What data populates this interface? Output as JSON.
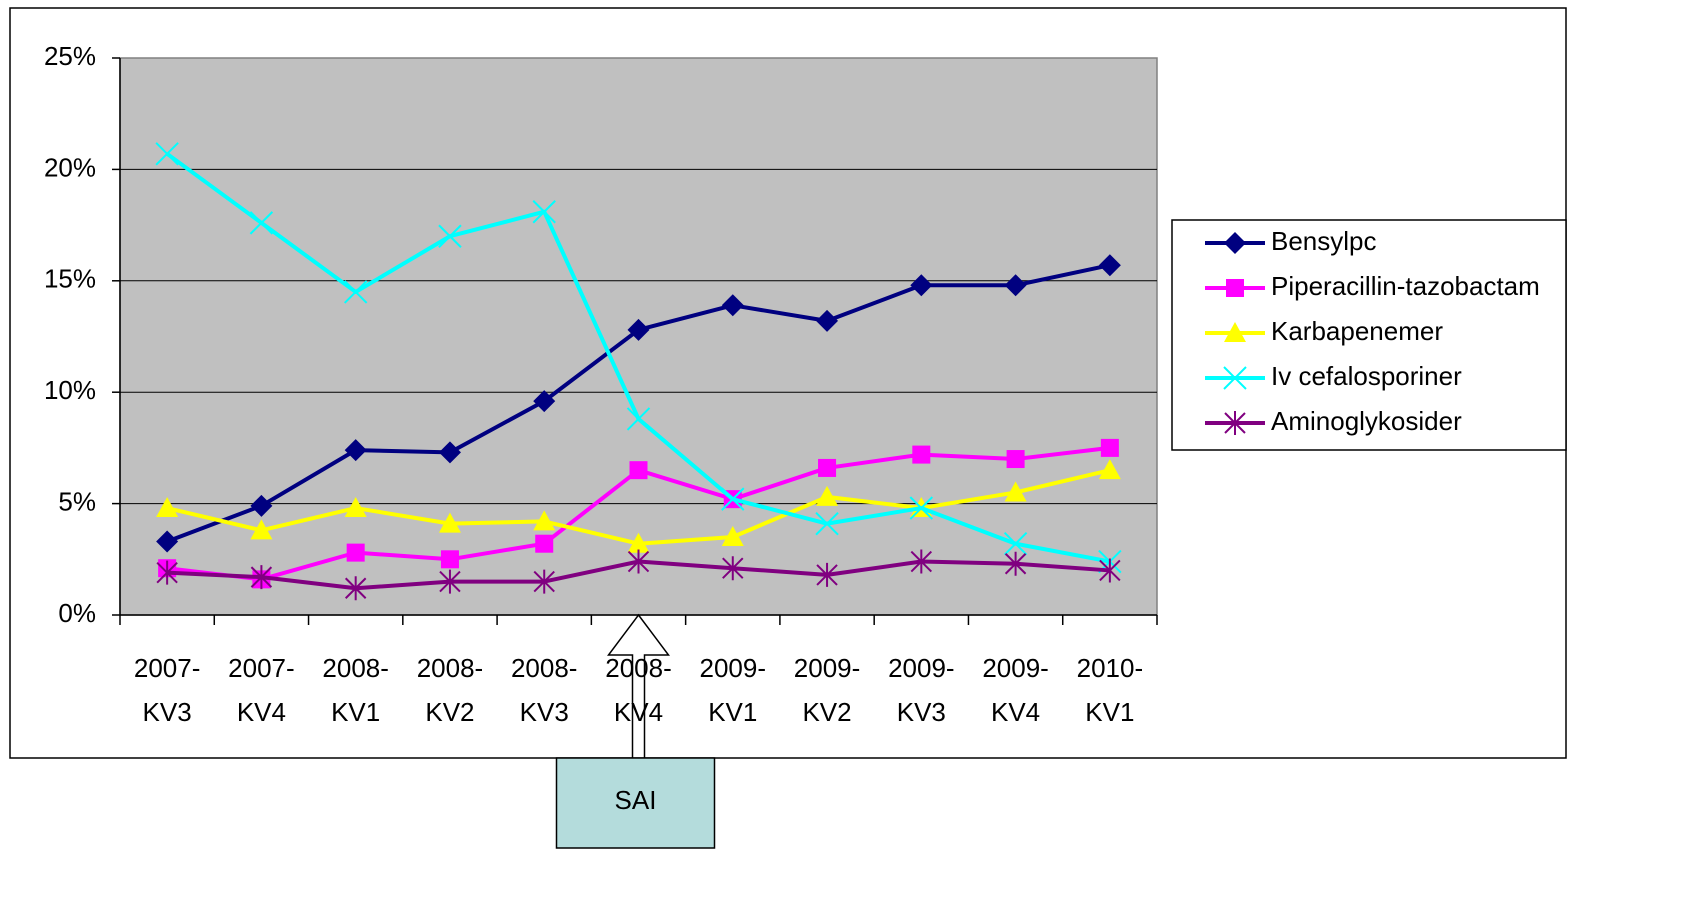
{
  "chart_data": {
    "type": "line",
    "categories": [
      "2007- KV3",
      "2007- KV4",
      "2008- KV1",
      "2008- KV2",
      "2008- KV3",
      "2008- KV4",
      "2009- KV1",
      "2009- KV2",
      "2009- KV3",
      "2009- KV4",
      "2010- KV1"
    ],
    "series": [
      {
        "name": "Bensylpc",
        "color": "#000080",
        "marker": "diamond",
        "values": [
          3.3,
          4.9,
          7.4,
          7.3,
          9.6,
          12.8,
          13.9,
          13.2,
          14.8,
          14.8,
          15.7
        ]
      },
      {
        "name": "Piperacillin-tazobactam",
        "color": "#ff00ff",
        "marker": "square",
        "values": [
          2.1,
          1.6,
          2.8,
          2.5,
          3.2,
          6.5,
          5.2,
          6.6,
          7.2,
          7.0,
          7.5
        ]
      },
      {
        "name": "Karbapenemer",
        "color": "#ffff00",
        "marker": "triangle",
        "values": [
          4.8,
          3.8,
          4.8,
          4.1,
          4.2,
          3.2,
          3.5,
          5.3,
          4.8,
          5.5,
          6.5
        ]
      },
      {
        "name": "Iv cefalosporiner",
        "color": "#00ffff",
        "marker": "x",
        "values": [
          20.7,
          17.6,
          14.5,
          17.0,
          18.1,
          8.8,
          5.2,
          4.1,
          4.8,
          3.2,
          2.4
        ]
      },
      {
        "name": "Aminoglykosider",
        "color": "#800080",
        "marker": "star",
        "values": [
          1.9,
          1.7,
          1.2,
          1.5,
          1.5,
          2.4,
          2.1,
          1.8,
          2.4,
          2.3,
          2.0
        ]
      }
    ],
    "ylim": [
      0,
      25
    ],
    "yticks": [
      {
        "value": 0,
        "label": "0%"
      },
      {
        "value": 5,
        "label": "5%"
      },
      {
        "value": 10,
        "label": "10%"
      },
      {
        "value": 15,
        "label": "15%"
      },
      {
        "value": 20,
        "label": "20%"
      },
      {
        "value": 25,
        "label": "25%"
      }
    ],
    "grid": true,
    "legend": "right",
    "annotation": {
      "text": "SAI",
      "category_index": 5
    }
  }
}
